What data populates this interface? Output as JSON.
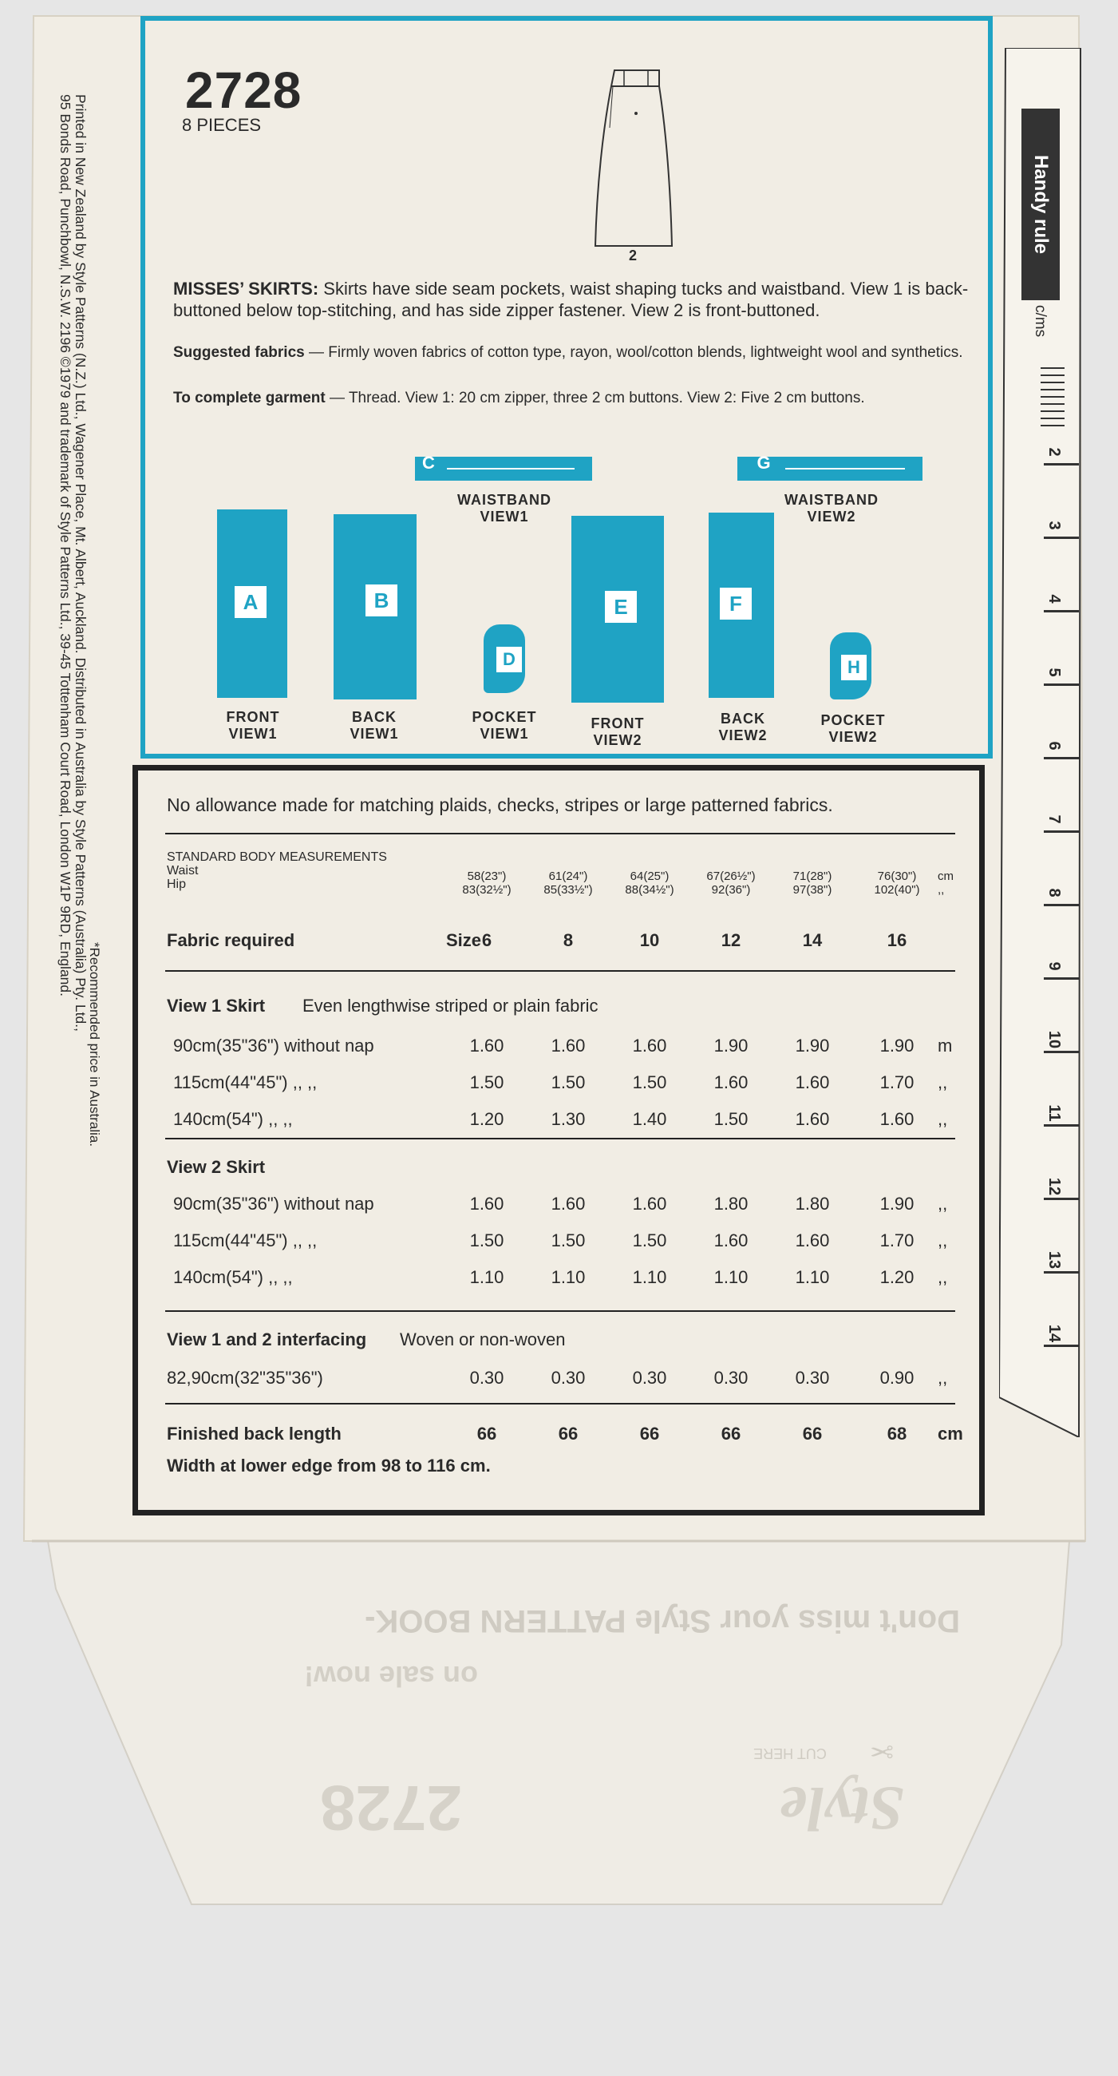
{
  "pattern": {
    "number": "2728",
    "pieces": "8 PIECES"
  },
  "sketch": {
    "view_number": "2"
  },
  "description": {
    "heading": "MISSES’ SKIRTS:",
    "text": "Skirts have side seam pockets, waist shaping tucks and waistband. View 1 is back-buttoned below top-stitching, and has side zipper fastener. View 2 is front-buttoned.",
    "fabrics_heading": "Suggested fabrics",
    "fabrics_text": "— Firmly woven fabrics of cotton type, rayon, wool/cotton blends, lightweight wool and synthetics.",
    "complete_heading": "To complete garment",
    "complete_text": "— Thread. View 1: 20 cm zipper, three 2 cm buttons. View 2: Five 2 cm buttons."
  },
  "pattern_pieces": [
    {
      "letter": "A",
      "label1": "FRONT",
      "label2": "VIEW1"
    },
    {
      "letter": "B",
      "label1": "BACK",
      "label2": "VIEW1"
    },
    {
      "letter": "C",
      "label1": "WAISTBAND",
      "label2": "VIEW1"
    },
    {
      "letter": "D",
      "label1": "POCKET",
      "label2": "VIEW1"
    },
    {
      "letter": "E",
      "label1": "FRONT",
      "label2": "VIEW2"
    },
    {
      "letter": "F",
      "label1": "BACK",
      "label2": "VIEW2"
    },
    {
      "letter": "G",
      "label1": "WAISTBAND",
      "label2": "VIEW2"
    },
    {
      "letter": "H",
      "label1": "POCKET",
      "label2": "VIEW2"
    }
  ],
  "side_text": {
    "line1": "Printed in New Zealand by Style Patterns (N.Z.) Ltd., Wagener Place, Mt. Albert, Auckland. Distributed in Australia by Style Patterns (Australia) Pty. Ltd.,",
    "line2": "95 Bonds Road, Punchbowl, N.S.W. 2196   ©1979 and trademark of Style Patterns Ltd., 39-45 Tottenham Court Road, London W1P 9RD, England.",
    "line3": "*Recommended price in Australia."
  },
  "chart": {
    "allowance": "No allowance made for matching plaids, checks, stripes or large patterned fabrics.",
    "sbm_title": "STANDARD BODY MEASUREMENTS",
    "waist_label": "Waist",
    "hip_label": "Hip",
    "waist": [
      "58(23\")",
      "61(24\")",
      "64(25\")",
      "67(26½\")",
      "71(28\")",
      "76(30\")"
    ],
    "hip": [
      "83(32½\")",
      "85(33½\")",
      "88(34½\")",
      "92(36\")",
      "97(38\")",
      "102(40\")"
    ],
    "waist_unit": "cm",
    "hip_unit": ",,",
    "fabric_required": "Fabric required",
    "size_label": "Size",
    "sizes": [
      "6",
      "8",
      "10",
      "12",
      "14",
      "16"
    ],
    "view1_heading": "View 1  Skirt",
    "view1_sub": "Even lengthwise striped or plain fabric",
    "view1_rows": [
      {
        "label": "90cm(35\"36\") without nap",
        "values": [
          "1.60",
          "1.60",
          "1.60",
          "1.90",
          "1.90",
          "1.90"
        ],
        "unit": "m"
      },
      {
        "label": "115cm(44\"45\")      ,,    ,,",
        "values": [
          "1.50",
          "1.50",
          "1.50",
          "1.60",
          "1.60",
          "1.70"
        ],
        "unit": ",,"
      },
      {
        "label": "140cm(54\")           ,,    ,,",
        "values": [
          "1.20",
          "1.30",
          "1.40",
          "1.50",
          "1.60",
          "1.60"
        ],
        "unit": ",,"
      }
    ],
    "view2_heading": "View 2  Skirt",
    "view2_rows": [
      {
        "label": "90cm(35\"36\") without nap",
        "values": [
          "1.60",
          "1.60",
          "1.60",
          "1.80",
          "1.80",
          "1.90"
        ],
        "unit": ",,"
      },
      {
        "label": "115cm(44\"45\")      ,,    ,,",
        "values": [
          "1.50",
          "1.50",
          "1.50",
          "1.60",
          "1.60",
          "1.70"
        ],
        "unit": ",,"
      },
      {
        "label": "140cm(54\")           ,,    ,,",
        "values": [
          "1.10",
          "1.10",
          "1.10",
          "1.10",
          "1.10",
          "1.20"
        ],
        "unit": ",,"
      }
    ],
    "interfacing_heading": "View 1 and 2 interfacing",
    "interfacing_sub": "Woven or non-woven",
    "interfacing_row": {
      "label": "82,90cm(32\"35\"36\")",
      "values": [
        "0.30",
        "0.30",
        "0.30",
        "0.30",
        "0.30",
        "0.90"
      ],
      "unit": ",,"
    },
    "finished_label": "Finished back length",
    "finished_values": [
      "66",
      "66",
      "66",
      "66",
      "66",
      "68"
    ],
    "finished_unit": "cm",
    "width_note": "Width at lower edge from 98 to 116 cm."
  },
  "handy_rule": {
    "title": "Handy rule",
    "unit": "c/ms",
    "marks": [
      "2",
      "3",
      "4",
      "5",
      "6",
      "7",
      "8",
      "9",
      "10",
      "11",
      "12",
      "13",
      "14"
    ]
  },
  "flap": {
    "ad_line1": "Don't miss your Style PATTERN BOOK-",
    "ad_line2": "on sale now!",
    "cut_here": "CUT HERE",
    "brand": "Style",
    "number": "2728"
  },
  "colors": {
    "accent": "#1fa3c4",
    "paper": "#f1ede4",
    "ink": "#2a2a2a"
  }
}
